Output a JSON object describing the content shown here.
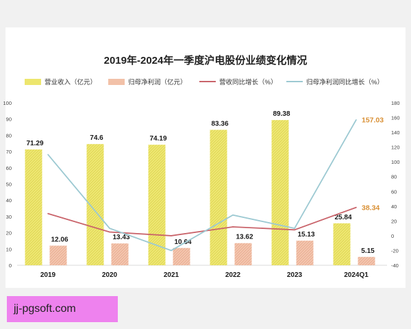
{
  "chart_data": {
    "type": "bar",
    "title": "2019年-2024年一季度沪电股份业绩变化情况",
    "categories": [
      "2019",
      "2020",
      "2021",
      "2022",
      "2023",
      "2024Q1"
    ],
    "series": [
      {
        "name": "营业收入（亿元）",
        "kind": "bar",
        "axis": "left",
        "color": "#ede66e",
        "values": [
          71.29,
          74.6,
          74.19,
          83.36,
          89.38,
          25.84
        ],
        "labels": [
          "71.29",
          "74.6",
          "74.19",
          "83.36",
          "89.38",
          "25.84"
        ]
      },
      {
        "name": "归母净利润（亿元）",
        "kind": "bar",
        "axis": "left",
        "color": "#f2c1a8",
        "values": [
          12.06,
          13.43,
          10.64,
          13.62,
          15.13,
          5.15
        ],
        "labels": [
          "12.06",
          "13.43",
          "10.64",
          "13.62",
          "15.13",
          "5.15"
        ]
      },
      {
        "name": "营收同比增长（%）",
        "kind": "line",
        "axis": "right",
        "color": "#c9636a",
        "values": [
          30,
          5,
          0,
          12,
          8,
          38.34
        ],
        "labels": [
          "",
          "",
          "",
          "",
          "",
          "38.34"
        ]
      },
      {
        "name": "归母净利润同比增长（%）",
        "kind": "line",
        "axis": "right",
        "color": "#9cc9d2",
        "values": [
          110,
          10,
          -20,
          28,
          10,
          157.03
        ],
        "labels": [
          "",
          "",
          "",
          "",
          "",
          "157.03"
        ]
      }
    ],
    "y_left": {
      "min": 0,
      "max": 100,
      "ticks": [
        "0",
        "10",
        "20",
        "30",
        "40",
        "50",
        "60",
        "70",
        "80",
        "90",
        "100"
      ]
    },
    "y_right": {
      "min": -40,
      "max": 180,
      "ticks": [
        "-40",
        "-20",
        "0",
        "20",
        "40",
        "60",
        "80",
        "100",
        "120",
        "140",
        "160",
        "180"
      ]
    },
    "label_highlight_color": "#d99035",
    "grid": false,
    "legend_position": "top"
  },
  "watermark": {
    "text": "jj-pgsoft.com"
  }
}
